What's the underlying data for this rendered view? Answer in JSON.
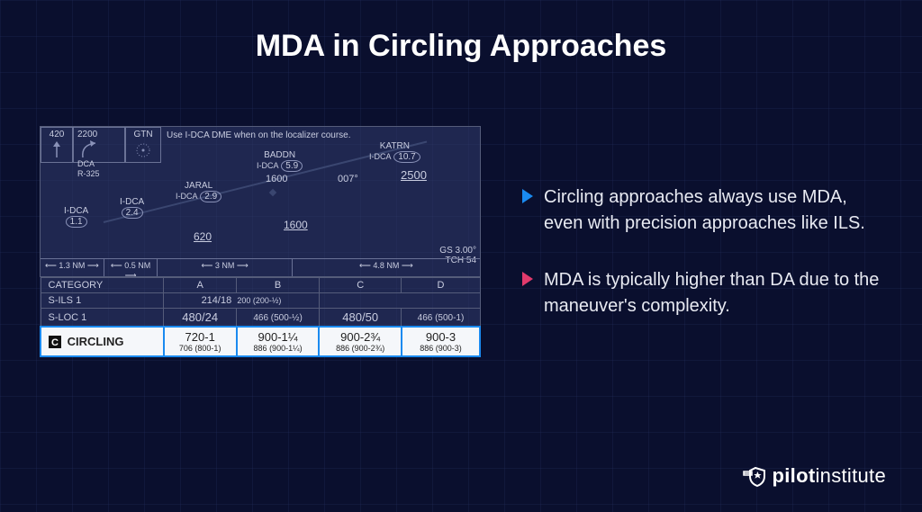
{
  "title": "MDA in Circling Approaches",
  "chart": {
    "plan": {
      "corner1": "420",
      "corner2_top": "2200",
      "corner2_sub": "DCA",
      "corner2_radial": "R-325",
      "corner3": "GTN",
      "instruction": "Use I-DCA DME when on the localizer course.",
      "wp_idca1": {
        "name": "I-DCA",
        "dme": "1.1"
      },
      "wp_idca2": {
        "name": "I-DCA",
        "dme": "2.4"
      },
      "wp_jaral": {
        "name": "JARAL",
        "sub": "I-DCA",
        "dme": "2.9"
      },
      "wp_baddn": {
        "name": "BADDN",
        "sub": "I-DCA",
        "dme": "5.9"
      },
      "wp_katrn": {
        "name": "KATRN",
        "sub": "I-DCA",
        "dme": "10.7"
      },
      "alt_620": "620",
      "alt_1600a": "1600",
      "alt_1600b": "1600",
      "course": "007°",
      "alt_2500": "2500",
      "gs_angle": "GS 3.00°",
      "tch": "TCH 54",
      "segments": [
        "1.3 NM",
        "0.5 NM",
        "3 NM",
        "4.8 NM"
      ],
      "seg_widths": [
        70,
        60,
        150,
        210
      ]
    },
    "minima": {
      "category_label": "CATEGORY",
      "cols": [
        "A",
        "B",
        "C",
        "D"
      ],
      "rows": [
        {
          "label": "S-ILS 1",
          "cells": [
            "",
            "214/18",
            "200 (200-½)",
            ""
          ],
          "colspan": [
            1,
            2,
            2,
            0
          ]
        },
        {
          "label": "S-LOC 1",
          "cells": [
            "480/24",
            "466 (500-½)",
            "480/50",
            "466 (500-1)"
          ],
          "sub": [
            null,
            "sub",
            null,
            "sub"
          ]
        }
      ],
      "circling": {
        "label": "CIRCLING",
        "cells": [
          {
            "main": "720-1",
            "sub": "706 (800-1)"
          },
          {
            "main": "900-1¼",
            "sub": "886 (900-1¼)"
          },
          {
            "main": "900-2¾",
            "sub": "886 (900-2¾)"
          },
          {
            "main": "900-3",
            "sub": "886 (900-3)"
          }
        ]
      }
    }
  },
  "bullets": [
    {
      "color": "#1a8af0",
      "text": "Circling approaches always use MDA, even with precision approaches like ILS."
    },
    {
      "color": "#e23a6c",
      "text": "MDA is typically higher than DA due to the maneuver's complexity."
    }
  ],
  "logo": {
    "brand": "pilot",
    "suffix": "institute"
  }
}
